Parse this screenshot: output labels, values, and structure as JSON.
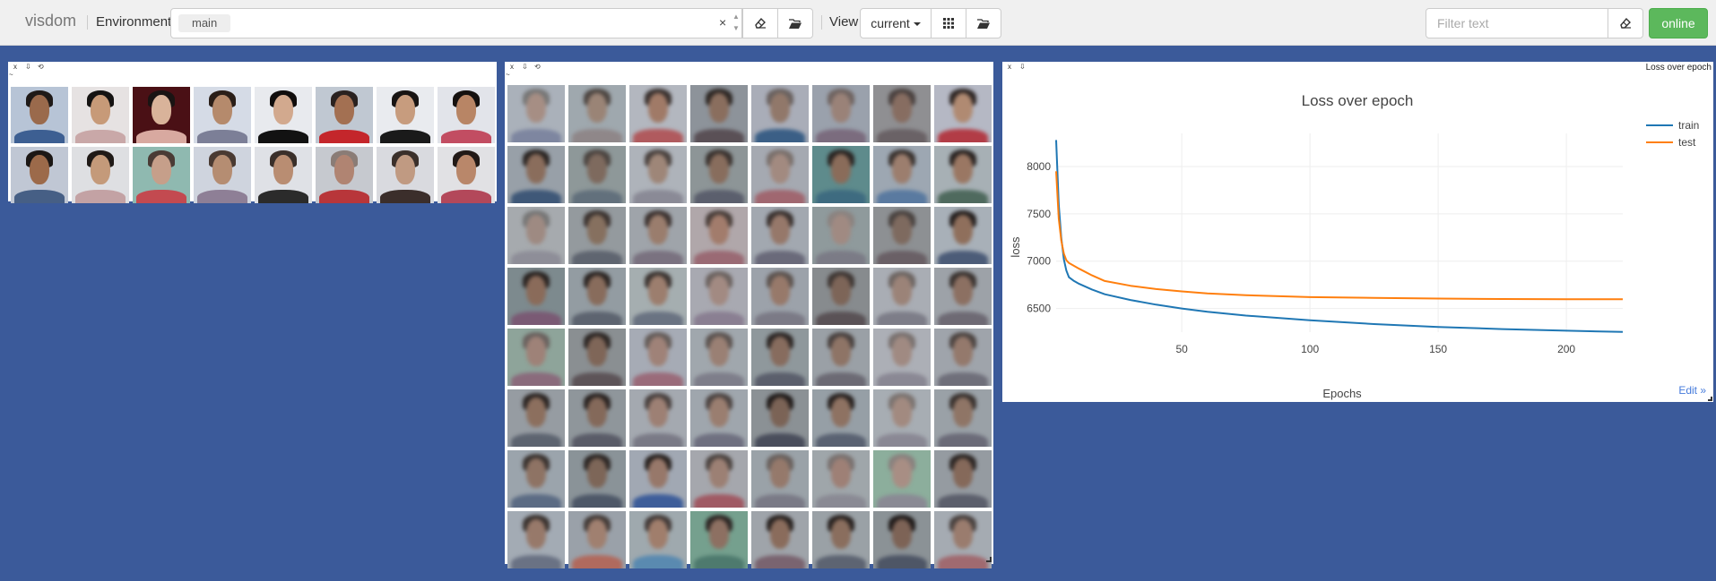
{
  "navbar": {
    "brand": "visdom",
    "environment_label": "Environment",
    "environment_tag": "main",
    "clear_glyph": "×",
    "view_label": "View",
    "view_select": "current",
    "filter_placeholder": "Filter text",
    "online_label": "online"
  },
  "icons": {
    "eraser": "eraser-icon",
    "folder": "folder-open-icon",
    "grid": "grid-icon",
    "close": "close-icon",
    "download": "download-icon",
    "reset": "reset-icon"
  },
  "panes": [
    {
      "controls": [
        "x",
        "⇩",
        "⟲"
      ],
      "title": "",
      "caption": "~",
      "rows": 2,
      "cols": 8,
      "thumb_colors": [
        {
          "bg": "#b7c4d6",
          "skin": "#9a6a4c",
          "hair": "#1f1a18",
          "shirt": "#3d5f92"
        },
        {
          "bg": "#e6e2e2",
          "skin": "#c79a78",
          "hair": "#151312",
          "shirt": "#c9a8a8"
        },
        {
          "bg": "#4a1015",
          "skin": "#d9b39a",
          "hair": "#1a1413",
          "shirt": "#d8a9a0"
        },
        {
          "bg": "#d5dbe6",
          "skin": "#b58a6c",
          "hair": "#2a1e18",
          "shirt": "#7c7f97"
        },
        {
          "bg": "#e8eaee",
          "skin": "#d2a98e",
          "hair": "#100d0c",
          "shirt": "#121212"
        },
        {
          "bg": "#c0c8d2",
          "skin": "#a37052",
          "hair": "#2a2220",
          "shirt": "#c4262b"
        },
        {
          "bg": "#e9ebef",
          "skin": "#c79c7e",
          "hair": "#181413",
          "shirt": "#1a1a1a"
        },
        {
          "bg": "#e2e4ea",
          "skin": "#b88565",
          "hair": "#15110f",
          "shirt": "#c24d62"
        },
        {
          "bg": "#c0c7d4",
          "skin": "#9c6a4a",
          "hair": "#1c1715",
          "shirt": "#465f85"
        },
        {
          "bg": "#dedfe2",
          "skin": "#c49a7a",
          "hair": "#201a17",
          "shirt": "#c3a2a4"
        },
        {
          "bg": "#8fb9b0",
          "skin": "#c69f8a",
          "hair": "#4a3b35",
          "shirt": "#c34a50"
        },
        {
          "bg": "#cfd4de",
          "skin": "#b58d72",
          "hair": "#4a3a32",
          "shirt": "#8e7f96"
        },
        {
          "bg": "#dfe1e6",
          "skin": "#b98d72",
          "hair": "#3a2f2a",
          "shirt": "#2b2b2b"
        },
        {
          "bg": "#c6c9cf",
          "skin": "#b08472",
          "hair": "#8a7c76",
          "shirt": "#b8363a"
        },
        {
          "bg": "#d9dadf",
          "skin": "#c09a82",
          "hair": "#3b302b",
          "shirt": "#3b2e2b"
        },
        {
          "bg": "#e1e1e4",
          "skin": "#b9876a",
          "hair": "#221a17",
          "shirt": "#b3485a"
        }
      ]
    },
    {
      "controls": [
        "x",
        "⇩",
        "⟲"
      ],
      "title": "",
      "caption": "~",
      "rows": 8,
      "cols": 8,
      "thumb_colors": [
        {
          "bg": "#aab1ba",
          "skin": "#a68e84",
          "hair": "#777",
          "shirt": "#7e86a0"
        },
        {
          "bg": "#9fa8ae",
          "skin": "#9a8476",
          "hair": "#4d4642",
          "shirt": "#8f8789"
        },
        {
          "bg": "#b3b7bf",
          "skin": "#a07a67",
          "hair": "#3a3230",
          "shirt": "#b05a5e"
        },
        {
          "bg": "#8d939a",
          "skin": "#8a6e5e",
          "hair": "#2e2825",
          "shirt": "#5a5056"
        },
        {
          "bg": "#a9adb8",
          "skin": "#91786a",
          "hair": "#6a6260",
          "shirt": "#3b5f86"
        },
        {
          "bg": "#9aa1ac",
          "skin": "#9a8278",
          "hair": "#6f6461",
          "shirt": "#7b6c7e"
        },
        {
          "bg": "#8f8f92",
          "skin": "#876d61",
          "hair": "#4b4240",
          "shirt": "#6a6266"
        },
        {
          "bg": "#b5b8c4",
          "skin": "#b08a72",
          "hair": "#2e2624",
          "shirt": "#b23c46"
        },
        {
          "bg": "#98a0a8",
          "skin": "#8a6d5c",
          "hair": "#2b2624",
          "shirt": "#3f5878"
        },
        {
          "bg": "#8e9899",
          "skin": "#7e6a5e",
          "hair": "#4c4541",
          "shirt": "#62707c"
        },
        {
          "bg": "#aeb3ba",
          "skin": "#9e8678",
          "hair": "#4a423f",
          "shirt": "#8a8a96"
        },
        {
          "bg": "#8d9597",
          "skin": "#886d5d",
          "hair": "#3a3330",
          "shirt": "#5b5f6d"
        },
        {
          "bg": "#a5a9b1",
          "skin": "#a28a80",
          "hair": "#7a706c",
          "shirt": "#a06770"
        },
        {
          "bg": "#5e8b8c",
          "skin": "#8a6c5a",
          "hair": "#2a2523",
          "shirt": "#3e6b80"
        },
        {
          "bg": "#9da7b2",
          "skin": "#9c7e6e",
          "hair": "#3b3431",
          "shirt": "#5a7aa0"
        },
        {
          "bg": "#a7b0b5",
          "skin": "#9a7763",
          "hair": "#2a2422",
          "shirt": "#4f6a5e"
        },
        {
          "bg": "#a6aaae",
          "skin": "#9e8a82",
          "hair": "#777",
          "shirt": "#8e8e98"
        },
        {
          "bg": "#949a9e",
          "skin": "#86705f",
          "hair": "#3c3431",
          "shirt": "#5f6570"
        },
        {
          "bg": "#9fa4aa",
          "skin": "#9a7d6d",
          "hair": "#3d3432",
          "shirt": "#7a7280"
        },
        {
          "bg": "#b0a7aa",
          "skin": "#a27c6c",
          "hair": "#4a3f3b",
          "shirt": "#9a6a74"
        },
        {
          "bg": "#a2a8b0",
          "skin": "#96786a",
          "hair": "#3a3230",
          "shirt": "#6a6a7a"
        },
        {
          "bg": "#8f9a9c",
          "skin": "#a08a82",
          "hair": "#8b8380",
          "shirt": "#7b7b86"
        },
        {
          "bg": "#8d9093",
          "skin": "#7e6a5f",
          "hair": "#4b4441",
          "shirt": "#6a6066"
        },
        {
          "bg": "#a8b0b8",
          "skin": "#8f6f5c",
          "hair": "#262120",
          "shirt": "#4c5c78"
        },
        {
          "bg": "#7d8a8e",
          "skin": "#8a6b5a",
          "hair": "#2a2422",
          "shirt": "#7a5a74"
        },
        {
          "bg": "#939ca2",
          "skin": "#886c5c",
          "hair": "#2c2624",
          "shirt": "#5d6470"
        },
        {
          "bg": "#a5aeb0",
          "skin": "#9c7e6e",
          "hair": "#3c3532",
          "shirt": "#6a7382"
        },
        {
          "bg": "#a8a9b1",
          "skin": "#a28a82",
          "hair": "#6c6360",
          "shirt": "#8a7f92"
        },
        {
          "bg": "#9ca2aa",
          "skin": "#97796a",
          "hair": "#5d5450",
          "shirt": "#7b7a86"
        },
        {
          "bg": "#878b8e",
          "skin": "#7d6558",
          "hair": "#403835",
          "shirt": "#5a5256"
        },
        {
          "bg": "#a9adb4",
          "skin": "#9b8378",
          "hair": "#6e6663",
          "shirt": "#7d7d88"
        },
        {
          "bg": "#9da2a8",
          "skin": "#8c7062",
          "hair": "#3b3431",
          "shirt": "#6e6a74"
        },
        {
          "bg": "#8ea49a",
          "skin": "#9e8278",
          "hair": "#6a625f",
          "shirt": "#8a6b7c"
        },
        {
          "bg": "#8a8f92",
          "skin": "#7f6658",
          "hair": "#2e2826",
          "shirt": "#5d5458"
        },
        {
          "bg": "#a6abb5",
          "skin": "#9f8278",
          "hair": "#655d5a",
          "shirt": "#9a6b7a"
        },
        {
          "bg": "#a0a7ad",
          "skin": "#9a8074",
          "hair": "#5c5451",
          "shirt": "#7e7e8a"
        },
        {
          "bg": "#8f989c",
          "skin": "#876c5e",
          "hair": "#2e2826",
          "shirt": "#5b5f6c"
        },
        {
          "bg": "#9aa0a6",
          "skin": "#8e7466",
          "hair": "#4a4240",
          "shirt": "#6c6a74"
        },
        {
          "bg": "#acafb6",
          "skin": "#a08a82",
          "hair": "#7a7270",
          "shirt": "#8a8894"
        },
        {
          "bg": "#9fa4ab",
          "skin": "#94796c",
          "hair": "#4d4542",
          "shirt": "#6f6f7a"
        },
        {
          "bg": "#969ca2",
          "skin": "#8c6f5e",
          "hair": "#2c2624",
          "shirt": "#5d6470"
        },
        {
          "bg": "#8f969b",
          "skin": "#84695a",
          "hair": "#2b2523",
          "shirt": "#5a5c68"
        },
        {
          "bg": "#a4a9b0",
          "skin": "#9d8074",
          "hair": "#4a4240",
          "shirt": "#7a7a86"
        },
        {
          "bg": "#9fa6ad",
          "skin": "#9a7e70",
          "hair": "#4d4543",
          "shirt": "#6f7080"
        },
        {
          "bg": "#8b9195",
          "skin": "#7b6356",
          "hair": "#221d1c",
          "shirt": "#4a4e5c"
        },
        {
          "bg": "#969fa6",
          "skin": "#8e7262",
          "hair": "#2a2422",
          "shirt": "#5a6272"
        },
        {
          "bg": "#a7adb3",
          "skin": "#a28a80",
          "hair": "#7c7471",
          "shirt": "#8a8894"
        },
        {
          "bg": "#9aa1a7",
          "skin": "#8f7566",
          "hair": "#3a3330",
          "shirt": "#6b6b78"
        },
        {
          "bg": "#9ba4ac",
          "skin": "#8e7364",
          "hair": "#3a3330",
          "shirt": "#5c6c84"
        },
        {
          "bg": "#8a9398",
          "skin": "#7d6658",
          "hair": "#2e2826",
          "shirt": "#4e5868"
        },
        {
          "bg": "#a1a8b3",
          "skin": "#97786a",
          "hair": "#2a2422",
          "shirt": "#3e5e9a"
        },
        {
          "bg": "#a5a7ad",
          "skin": "#9c8074",
          "hair": "#4d4542",
          "shirt": "#a05a64"
        },
        {
          "bg": "#9aa2a8",
          "skin": "#95796b",
          "hair": "#6a625f",
          "shirt": "#7a7a86"
        },
        {
          "bg": "#9fa6aa",
          "skin": "#9e8076",
          "hair": "#7a7270",
          "shirt": "#8a8a94"
        },
        {
          "bg": "#8cae9c",
          "skin": "#a88e84",
          "hair": "#8a827f",
          "shirt": "#8a8a94"
        },
        {
          "bg": "#959ba1",
          "skin": "#85695a",
          "hair": "#2e2826",
          "shirt": "#5c5f6c"
        },
        {
          "bg": "#a3abb4",
          "skin": "#97796a",
          "hair": "#3a3330",
          "shirt": "#6a7284"
        },
        {
          "bg": "#9aa1a9",
          "skin": "#a08070",
          "hair": "#443c39",
          "shirt": "#b06a5e"
        },
        {
          "bg": "#9fa9ae",
          "skin": "#a07e6c",
          "hair": "#443c3a",
          "shirt": "#5a8ab0"
        },
        {
          "bg": "#75a08e",
          "skin": "#8d7062",
          "hair": "#2e2826",
          "shirt": "#4e7a6e"
        },
        {
          "bg": "#9fa4aa",
          "skin": "#8a6c5c",
          "hair": "#2a2422",
          "shirt": "#7a6470"
        },
        {
          "bg": "#9aa1a6",
          "skin": "#8a6e5e",
          "hair": "#2a2422",
          "shirt": "#5d6472"
        },
        {
          "bg": "#8b9296",
          "skin": "#7d6356",
          "hair": "#221d1c",
          "shirt": "#4e5666"
        },
        {
          "bg": "#a5abb2",
          "skin": "#9a7c6e",
          "hair": "#4a4240",
          "shirt": "#a06a70"
        }
      ]
    },
    {
      "controls": [
        "x",
        "⇩"
      ],
      "title": "Loss over epoch",
      "edit_link": "Edit »"
    }
  ],
  "chart_data": {
    "type": "line",
    "title": "Loss over epoch",
    "xlabel": "Epochs",
    "ylabel": "loss",
    "xlim": [
      1,
      222
    ],
    "ylim": [
      6250,
      8350
    ],
    "x_ticks": [
      50,
      100,
      150,
      200
    ],
    "y_ticks": [
      6500,
      7000,
      7500,
      8000
    ],
    "grid": true,
    "legend_position": "top-right",
    "series": [
      {
        "name": "train",
        "color": "#1f77b4",
        "x": [
          1,
          2,
          3,
          4,
          5,
          6,
          8,
          10,
          15,
          20,
          30,
          40,
          50,
          60,
          75,
          100,
          125,
          150,
          175,
          200,
          222
        ],
        "values": [
          8280,
          7600,
          7250,
          7020,
          6900,
          6830,
          6790,
          6760,
          6700,
          6650,
          6590,
          6540,
          6500,
          6465,
          6425,
          6375,
          6335,
          6305,
          6282,
          6265,
          6252
        ]
      },
      {
        "name": "test",
        "color": "#ff7f0e",
        "x": [
          1,
          2,
          3,
          4,
          5,
          6,
          8,
          10,
          15,
          20,
          30,
          40,
          50,
          60,
          75,
          100,
          125,
          150,
          175,
          200,
          222
        ],
        "values": [
          7950,
          7450,
          7220,
          7080,
          7010,
          6980,
          6950,
          6920,
          6850,
          6790,
          6740,
          6705,
          6680,
          6660,
          6640,
          6620,
          6612,
          6605,
          6600,
          6598,
          6597
        ]
      }
    ]
  }
}
